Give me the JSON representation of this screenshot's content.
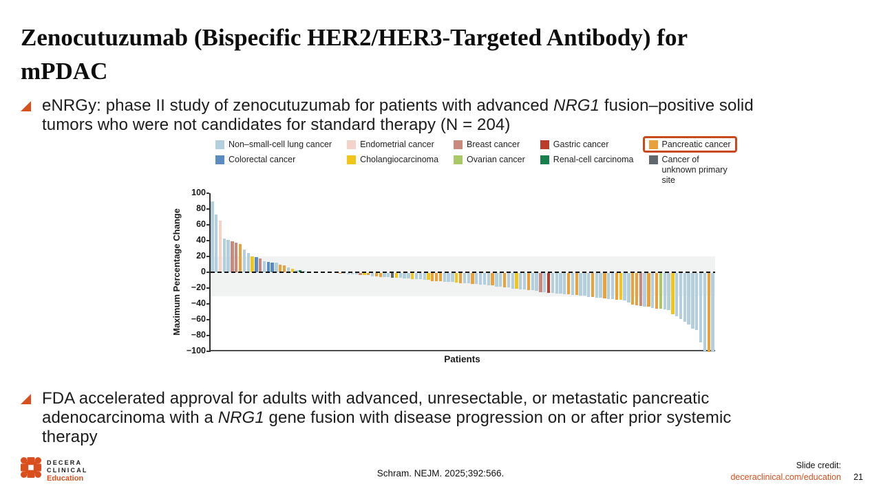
{
  "slide": {
    "title_line1": "Zenocutuzumab (Bispecific HER2/HER3-Targeted Antibody) for",
    "title_line2": "mPDAC",
    "bullets": {
      "b1": {
        "pre": "eNRGy: phase II study of zenocutuzumab for patients with advanced ",
        "italic": "NRG1",
        "post": " fusion–positive solid tumors who were not candidates for standard therapy (N = 204)"
      },
      "b2": {
        "pre": "FDA accelerated approval for adults with advanced, unresectable, or metastatic pancreatic adenocarcinoma with a ",
        "italic": "NRG1",
        "post": " gene fusion with disease progression on or after prior systemic therapy"
      }
    }
  },
  "footer": {
    "brand_line1": "DECERA",
    "brand_line2": "CLINICAL",
    "brand_line3": "Education",
    "citation": "Schram. NEJM. 2025;392:566.",
    "credit_label": "Slide credit:",
    "credit_link": "deceraclinical.com/education",
    "page_number": "21"
  },
  "colors": {
    "accent": "#d9501e",
    "highlight_box": "#c8491c",
    "band": "#f1f2f2"
  },
  "chart_data": {
    "type": "bar",
    "title": "",
    "xlabel": "Patients",
    "ylabel": "Maximum Percentage Change",
    "ylim": [
      -100,
      100
    ],
    "yticks": [
      100,
      80,
      60,
      40,
      20,
      0,
      -20,
      -40,
      -60,
      -80,
      -100
    ],
    "shaded_band": {
      "from": -30,
      "to": 20
    },
    "zero_line": "dashed",
    "legend_position": "top",
    "grid": false,
    "category_colors": {
      "n": "#b3cedd",
      "e": "#f3d2ca",
      "b": "#c9897c",
      "g": "#bc3c2b",
      "p": "#e9a23b",
      "c": "#5a8cc3",
      "ch": "#f2c51a",
      "o": "#a9c964",
      "r": "#17804a",
      "u": "#60676d"
    },
    "legend": [
      {
        "key": "n",
        "label": "Non–small-cell lung cancer",
        "color": "#b3cedd",
        "highlighted": false,
        "wrap": false
      },
      {
        "key": "e",
        "label": "Endometrial cancer",
        "color": "#f3d2ca",
        "highlighted": false,
        "wrap": false
      },
      {
        "key": "b",
        "label": "Breast cancer",
        "color": "#c9897c",
        "highlighted": false,
        "wrap": false
      },
      {
        "key": "g",
        "label": "Gastric cancer",
        "color": "#bc3c2b",
        "highlighted": false,
        "wrap": false
      },
      {
        "key": "p",
        "label": "Pancreatic cancer",
        "color": "#e9a23b",
        "highlighted": true,
        "wrap": false
      },
      {
        "key": "c",
        "label": "Colorectal cancer",
        "color": "#5a8cc3",
        "highlighted": false,
        "wrap": false
      },
      {
        "key": "ch",
        "label": "Cholangiocarcinoma",
        "color": "#f2c51a",
        "highlighted": false,
        "wrap": false
      },
      {
        "key": "o",
        "label": "Ovarian cancer",
        "color": "#a9c964",
        "highlighted": false,
        "wrap": false
      },
      {
        "key": "r",
        "label": "Renal-cell carcinoma",
        "color": "#17804a",
        "highlighted": false,
        "wrap": false
      },
      {
        "key": "u",
        "label": "Cancer of unknown primary site",
        "color": "#60676d",
        "highlighted": false,
        "wrap": true
      }
    ],
    "bars": [
      [
        90,
        "n"
      ],
      [
        73,
        "n"
      ],
      [
        65,
        "e"
      ],
      [
        43,
        "n"
      ],
      [
        41,
        "n"
      ],
      [
        39,
        "b"
      ],
      [
        37,
        "b"
      ],
      [
        36,
        "p"
      ],
      [
        29,
        "n"
      ],
      [
        24,
        "n"
      ],
      [
        20,
        "ch"
      ],
      [
        19,
        "c"
      ],
      [
        17,
        "b"
      ],
      [
        14,
        "n"
      ],
      [
        13,
        "c"
      ],
      [
        12,
        "c"
      ],
      [
        12,
        "n"
      ],
      [
        10,
        "p"
      ],
      [
        9,
        "p"
      ],
      [
        6,
        "n"
      ],
      [
        4,
        "ch"
      ],
      [
        3,
        "n"
      ],
      [
        2.5,
        "r"
      ],
      [
        2,
        "n"
      ],
      [
        0,
        "n"
      ],
      [
        0,
        "n"
      ],
      [
        0,
        "n"
      ],
      [
        0,
        "n"
      ],
      [
        0,
        "n"
      ],
      [
        0,
        "n"
      ],
      [
        0,
        "n"
      ],
      [
        0,
        "n"
      ],
      [
        -1,
        "p"
      ],
      [
        -1,
        "n"
      ],
      [
        -2,
        "n"
      ],
      [
        -2,
        "n"
      ],
      [
        -2,
        "n"
      ],
      [
        -3,
        "b"
      ],
      [
        -3,
        "ch"
      ],
      [
        -3,
        "p"
      ],
      [
        -4,
        "n"
      ],
      [
        -4,
        "p"
      ],
      [
        -5,
        "p"
      ],
      [
        -5,
        "n"
      ],
      [
        -5,
        "n"
      ],
      [
        -6,
        "u"
      ],
      [
        -6,
        "ch"
      ],
      [
        -6,
        "n"
      ],
      [
        -7,
        "n"
      ],
      [
        -7,
        "n"
      ],
      [
        -8,
        "ch"
      ],
      [
        -8,
        "n"
      ],
      [
        -8,
        "n"
      ],
      [
        -9,
        "n"
      ],
      [
        -9,
        "ch"
      ],
      [
        -10,
        "p"
      ],
      [
        -10,
        "p"
      ],
      [
        -10,
        "p"
      ],
      [
        -11,
        "n"
      ],
      [
        -11,
        "n"
      ],
      [
        -11,
        "n"
      ],
      [
        -12,
        "ch"
      ],
      [
        -13,
        "p"
      ],
      [
        -13,
        "n"
      ],
      [
        -13,
        "n"
      ],
      [
        -14,
        "p"
      ],
      [
        -14,
        "n"
      ],
      [
        -15,
        "n"
      ],
      [
        -15,
        "n"
      ],
      [
        -16,
        "n"
      ],
      [
        -16,
        "p"
      ],
      [
        -17,
        "n"
      ],
      [
        -17,
        "n"
      ],
      [
        -18,
        "p"
      ],
      [
        -18,
        "n"
      ],
      [
        -20,
        "n"
      ],
      [
        -20,
        "ch"
      ],
      [
        -21,
        "n"
      ],
      [
        -21,
        "n"
      ],
      [
        -22,
        "p"
      ],
      [
        -22,
        "n"
      ],
      [
        -23,
        "n"
      ],
      [
        -24,
        "b"
      ],
      [
        -24,
        "n"
      ],
      [
        -25,
        "g"
      ],
      [
        -25,
        "n"
      ],
      [
        -26,
        "n"
      ],
      [
        -26,
        "n"
      ],
      [
        -27,
        "n"
      ],
      [
        -27,
        "p"
      ],
      [
        -28,
        "n"
      ],
      [
        -28,
        "p"
      ],
      [
        -29,
        "n"
      ],
      [
        -29,
        "n"
      ],
      [
        -30,
        "n"
      ],
      [
        -30,
        "p"
      ],
      [
        -31,
        "n"
      ],
      [
        -31,
        "n"
      ],
      [
        -32,
        "p"
      ],
      [
        -33,
        "n"
      ],
      [
        -33,
        "n"
      ],
      [
        -34,
        "p"
      ],
      [
        -34,
        "ch"
      ],
      [
        -35,
        "n"
      ],
      [
        -37,
        "n"
      ],
      [
        -40,
        "p"
      ],
      [
        -41,
        "p"
      ],
      [
        -42,
        "b"
      ],
      [
        -43,
        "n"
      ],
      [
        -43,
        "p"
      ],
      [
        -44,
        "n"
      ],
      [
        -45,
        "p"
      ],
      [
        -45,
        "o"
      ],
      [
        -46,
        "n"
      ],
      [
        -47,
        "n"
      ],
      [
        -52,
        "ch"
      ],
      [
        -55,
        "n"
      ],
      [
        -58,
        "n"
      ],
      [
        -62,
        "n"
      ],
      [
        -65,
        "n"
      ],
      [
        -70,
        "n"
      ],
      [
        -72,
        "n"
      ],
      [
        -88,
        "n"
      ],
      [
        -100,
        "n"
      ],
      [
        -100,
        "p"
      ],
      [
        -100,
        "n"
      ]
    ]
  }
}
